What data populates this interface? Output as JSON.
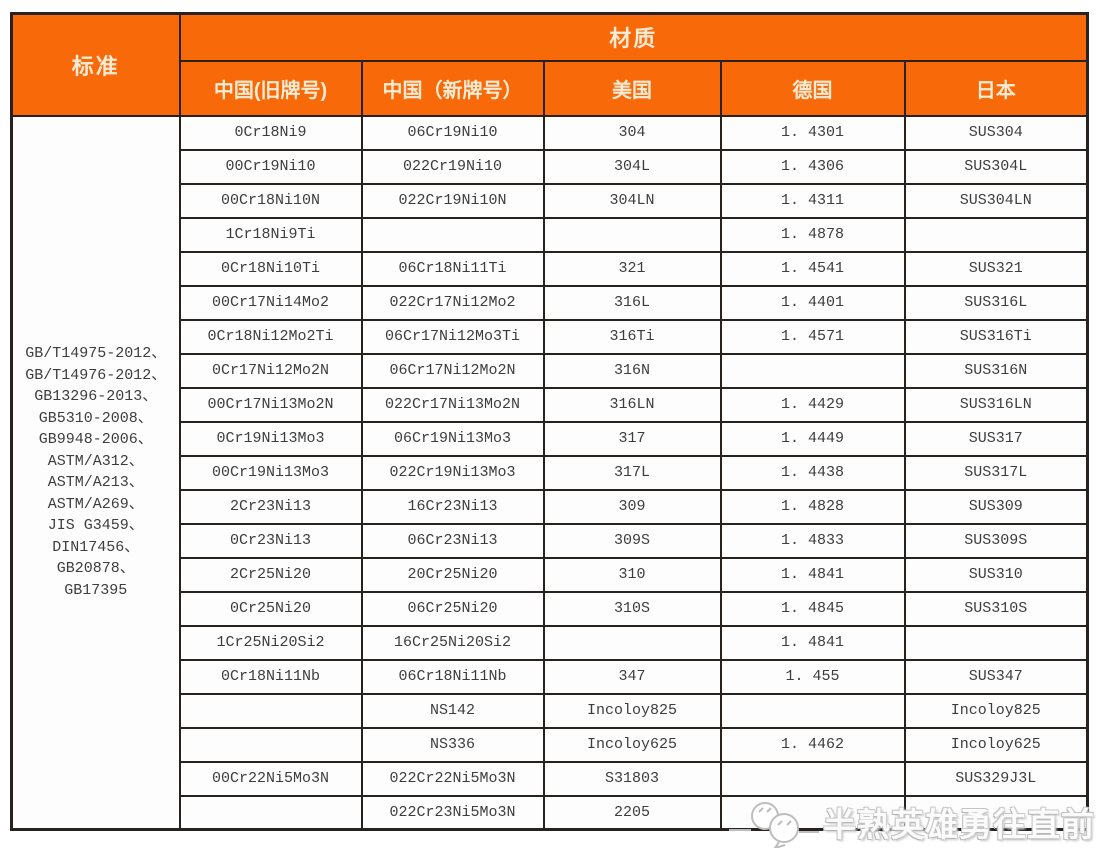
{
  "header": {
    "standard_label": "标准",
    "material_label": "材质",
    "columns": [
      "中国(旧牌号)",
      "中国（新牌号）",
      "美国",
      "德国",
      "日本"
    ]
  },
  "standards": [
    "GB/T14975-2012、",
    "GB/T14976-2012、",
    "GB13296-2013、",
    "GB5310-2008、",
    "GB9948-2006、",
    "ASTM/A312、",
    "ASTM/A213、",
    "ASTM/A269、",
    "JIS G3459、",
    "DIN17456、",
    "GB20878、",
    "GB17395"
  ],
  "rows": [
    [
      "0Cr18Ni9",
      "06Cr19Ni10",
      "304",
      "1. 4301",
      "SUS304"
    ],
    [
      "00Cr19Ni10",
      "022Cr19Ni10",
      "304L",
      "1. 4306",
      "SUS304L"
    ],
    [
      "00Cr18Ni10N",
      "022Cr19Ni10N",
      "304LN",
      "1. 4311",
      "SUS304LN"
    ],
    [
      "1Cr18Ni9Ti",
      "",
      "",
      "1. 4878",
      ""
    ],
    [
      "0Cr18Ni10Ti",
      "06Cr18Ni11Ti",
      "321",
      "1. 4541",
      "SUS321"
    ],
    [
      "00Cr17Ni14Mo2",
      "022Cr17Ni12Mo2",
      "316L",
      "1. 4401",
      "SUS316L"
    ],
    [
      "0Cr18Ni12Mo2Ti",
      "06Cr17Ni12Mo3Ti",
      "316Ti",
      "1. 4571",
      "SUS316Ti"
    ],
    [
      "0Cr17Ni12Mo2N",
      "06Cr17Ni12Mo2N",
      "316N",
      "",
      "SUS316N"
    ],
    [
      "00Cr17Ni13Mo2N",
      "022Cr17Ni13Mo2N",
      "316LN",
      "1. 4429",
      "SUS316LN"
    ],
    [
      "0Cr19Ni13Mo3",
      "06Cr19Ni13Mo3",
      "317",
      "1. 4449",
      "SUS317"
    ],
    [
      "00Cr19Ni13Mo3",
      "022Cr19Ni13Mo3",
      "317L",
      "1. 4438",
      "SUS317L"
    ],
    [
      "2Cr23Ni13",
      "16Cr23Ni13",
      "309",
      "1. 4828",
      "SUS309"
    ],
    [
      "0Cr23Ni13",
      "06Cr23Ni13",
      "309S",
      "1. 4833",
      "SUS309S"
    ],
    [
      "2Cr25Ni20",
      "20Cr25Ni20",
      "310",
      "1. 4841",
      "SUS310"
    ],
    [
      "0Cr25Ni20",
      "06Cr25Ni20",
      "310S",
      "1. 4845",
      "SUS310S"
    ],
    [
      "1Cr25Ni20Si2",
      "16Cr25Ni20Si2",
      "",
      "1. 4841",
      ""
    ],
    [
      "0Cr18Ni11Nb",
      "06Cr18Ni11Nb",
      "347",
      "1. 455",
      "SUS347"
    ],
    [
      "",
      "NS142",
      "Incoloy825",
      "",
      "Incoloy825"
    ],
    [
      "",
      "NS336",
      "Incoloy625",
      "1. 4462",
      "Incoloy625"
    ],
    [
      "00Cr22Ni5Mo3N",
      "022Cr22Ni5Mo3N",
      "S31803",
      "",
      "SUS329J3L"
    ],
    [
      "",
      "022Cr23Ni5Mo3N",
      "2205",
      "",
      ""
    ]
  ],
  "watermark": {
    "text": "半熟英雄勇往直前",
    "icon": "wechat-emoji-icon"
  },
  "colors": {
    "header_bg": "#F8690A",
    "header_text": "#F8EBD3",
    "border": "#27221d",
    "cell_text": "#3d3d3d"
  }
}
